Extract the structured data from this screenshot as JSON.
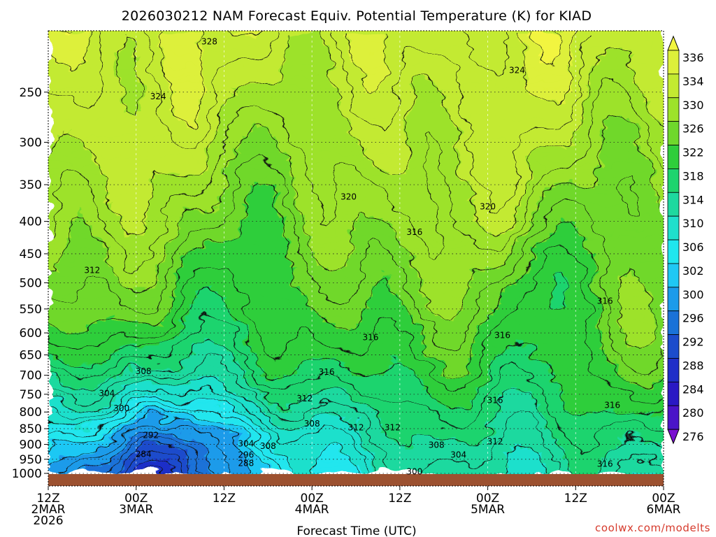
{
  "chart_data": {
    "type": "heatmap",
    "title": "2026030212 NAM Forecast Equiv. Potential Temperature (K) for KIAD",
    "xlabel": "Forecast Time (UTC)",
    "ylabel": "",
    "y_scale": "log-pressure",
    "ylim": [
      1000,
      200
    ],
    "x_ticks": [
      {
        "hours": 0,
        "lines": [
          "12Z",
          "2MAR",
          "2026"
        ]
      },
      {
        "hours": 12,
        "lines": [
          "00Z",
          "3MAR"
        ]
      },
      {
        "hours": 24,
        "lines": [
          "12Z"
        ]
      },
      {
        "hours": 36,
        "lines": [
          "00Z",
          "4MAR"
        ]
      },
      {
        "hours": 48,
        "lines": [
          "12Z"
        ]
      },
      {
        "hours": 60,
        "lines": [
          "00Z",
          "5MAR"
        ]
      },
      {
        "hours": 72,
        "lines": [
          "12Z"
        ]
      },
      {
        "hours": 84,
        "lines": [
          "00Z",
          "6MAR"
        ]
      }
    ],
    "y_ticks": [
      250,
      300,
      350,
      400,
      450,
      500,
      550,
      600,
      650,
      700,
      750,
      800,
      850,
      900,
      950,
      1000
    ],
    "grid": true,
    "colorbar": {
      "labels": [
        336,
        334,
        330,
        326,
        322,
        318,
        314,
        310,
        306,
        302,
        300,
        296,
        292,
        288,
        284,
        280,
        276
      ],
      "colors": [
        "#f2f53f",
        "#ddf03a",
        "#c3ea31",
        "#9de22a",
        "#6fd82c",
        "#2fce3b",
        "#1ed46e",
        "#1ed99f",
        "#1fe0cc",
        "#20e6ee",
        "#1fc8f4",
        "#1b9bea",
        "#1a72d8",
        "#1c4ccc",
        "#1f2ec8",
        "#2a19c4",
        "#4a14c8",
        "#7a10d0"
      ],
      "placement": "right"
    },
    "contour_labels": [
      {
        "value": 328,
        "hours": 22,
        "p": 208
      },
      {
        "value": 324,
        "hours": 15,
        "p": 254
      },
      {
        "value": 324,
        "hours": 64,
        "p": 231
      },
      {
        "value": 320,
        "hours": 41,
        "p": 366
      },
      {
        "value": 320,
        "hours": 60,
        "p": 379
      },
      {
        "value": 316,
        "hours": 50,
        "p": 416
      },
      {
        "value": 316,
        "hours": 76,
        "p": 534
      },
      {
        "value": 316,
        "hours": 44,
        "p": 610
      },
      {
        "value": 316,
        "hours": 62,
        "p": 605
      },
      {
        "value": 316,
        "hours": 38,
        "p": 692
      },
      {
        "value": 316,
        "hours": 61,
        "p": 767
      },
      {
        "value": 316,
        "hours": 77,
        "p": 780
      },
      {
        "value": 316,
        "hours": 76,
        "p": 966
      },
      {
        "value": 312,
        "hours": 6,
        "p": 478
      },
      {
        "value": 312,
        "hours": 35,
        "p": 762
      },
      {
        "value": 312,
        "hours": 42,
        "p": 847
      },
      {
        "value": 312,
        "hours": 47,
        "p": 847
      },
      {
        "value": 312,
        "hours": 61,
        "p": 891
      },
      {
        "value": 308,
        "hours": 13,
        "p": 690
      },
      {
        "value": 308,
        "hours": 36,
        "p": 835
      },
      {
        "value": 308,
        "hours": 30,
        "p": 906
      },
      {
        "value": 308,
        "hours": 53,
        "p": 902
      },
      {
        "value": 304,
        "hours": 8,
        "p": 747
      },
      {
        "value": 304,
        "hours": 27,
        "p": 898
      },
      {
        "value": 304,
        "hours": 56,
        "p": 935
      },
      {
        "value": 300,
        "hours": 10,
        "p": 789
      },
      {
        "value": 300,
        "hours": 50,
        "p": 994
      },
      {
        "value": 296,
        "hours": 27,
        "p": 935
      },
      {
        "value": 292,
        "hours": 14,
        "p": 871
      },
      {
        "value": 288,
        "hours": 27,
        "p": 964
      },
      {
        "value": 284,
        "hours": 13,
        "p": 932
      }
    ]
  },
  "credit": "coolwx.com/modelts",
  "ground_color": "#9c5130"
}
